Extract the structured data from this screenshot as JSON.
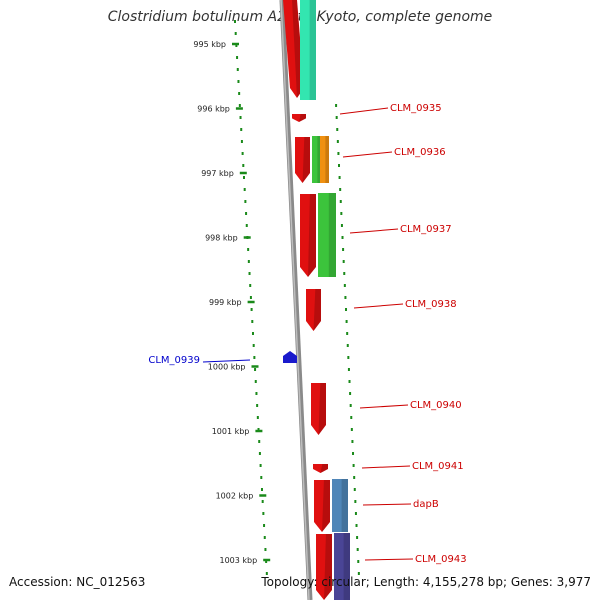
{
  "title": "Clostridium botulinum A2 str. Kyoto, complete genome",
  "footer": {
    "accession": "Accession: NC_012563",
    "topology": "Topology: circular; Length: 4,155,278 bp; Genes: 3,977"
  },
  "colors": {
    "backbone": "#8a8a8a",
    "ticks": "#1a8a1a",
    "label_red": "#cc0000",
    "label_blue": "#0000cc",
    "cds_red": "#e01010",
    "cog_teal": "#33e6b0",
    "cog_green": "#3cc43c",
    "cog_orange": "#f09010",
    "cog_steel": "#4f86b8",
    "cog_purple": "#4a4596"
  },
  "ticks": [
    {
      "kbp": 995,
      "label": "995 kbp"
    },
    {
      "kbp": 996,
      "label": "996 kbp"
    },
    {
      "kbp": 997,
      "label": "997 kbp"
    },
    {
      "kbp": 998,
      "label": "998 kbp"
    },
    {
      "kbp": 999,
      "label": "999 kbp"
    },
    {
      "kbp": 1000,
      "label": "1000 kbp"
    },
    {
      "kbp": 1001,
      "label": "1001 kbp"
    },
    {
      "kbp": 1002,
      "label": "1002 kbp"
    },
    {
      "kbp": 1003,
      "label": "1003 kbp"
    }
  ],
  "genes": [
    {
      "label": "CLM_0935",
      "strand": "reverse"
    },
    {
      "label": "CLM_0936",
      "strand": "reverse"
    },
    {
      "label": "CLM_0937",
      "strand": "reverse"
    },
    {
      "label": "CLM_0938",
      "strand": "reverse"
    },
    {
      "label": "CLM_0939",
      "strand": "forward"
    },
    {
      "label": "CLM_0940",
      "strand": "reverse"
    },
    {
      "label": "CLM_0941",
      "strand": "reverse"
    },
    {
      "label": "dapB",
      "strand": "reverse"
    },
    {
      "label": "CLM_0943",
      "strand": "reverse"
    }
  ]
}
